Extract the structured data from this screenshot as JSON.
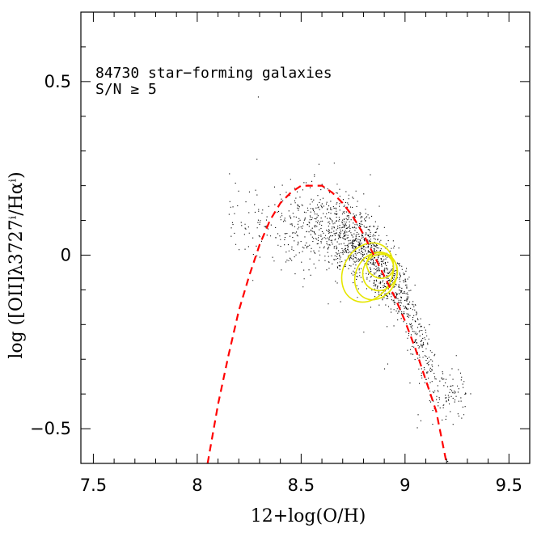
{
  "chart_data": {
    "type": "scatter",
    "title": "",
    "xlabel": "12+log(O/H)",
    "ylabel": "log ([OII]λ3727ⁱ/Hαⁱ)",
    "xlim": [
      7.44,
      9.6
    ],
    "ylim": [
      -0.6,
      0.7
    ],
    "x_ticks": [
      7.5,
      8,
      8.5,
      9,
      9.5
    ],
    "x_tick_labels": [
      "7.5",
      "8",
      "8.5",
      "9",
      "9.5"
    ],
    "y_ticks": [
      -0.5,
      0,
      0.5
    ],
    "y_tick_labels": [
      "−0.5",
      "0",
      "0.5"
    ],
    "annotations": [
      "84730 star−forming galaxies",
      "S/N ≥ 5"
    ],
    "grid": false,
    "series": [
      {
        "kind": "scatter-cloud",
        "color": "#000000",
        "approximate_density_ridge": [
          {
            "x": 8.3,
            "y": 0.08,
            "spread": 0.09
          },
          {
            "x": 8.5,
            "y": 0.1,
            "spread": 0.09
          },
          {
            "x": 8.7,
            "y": 0.06,
            "spread": 0.08
          },
          {
            "x": 8.85,
            "y": 0.0,
            "spread": 0.07
          },
          {
            "x": 9.0,
            "y": -0.12,
            "spread": 0.07
          },
          {
            "x": 9.1,
            "y": -0.3,
            "spread": 0.07
          },
          {
            "x": 9.15,
            "y": -0.4,
            "spread": 0.06
          }
        ]
      },
      {
        "kind": "contours",
        "color": "#e6e600",
        "levels": [
          {
            "center": {
              "x": 8.82,
              "y": -0.05
            },
            "rx": 0.3,
            "ry": 0.085,
            "angle_deg": -62
          },
          {
            "center": {
              "x": 8.86,
              "y": -0.06
            },
            "rx": 0.24,
            "ry": 0.065,
            "angle_deg": -62
          },
          {
            "center": {
              "x": 8.88,
              "y": -0.05
            },
            "rx": 0.18,
            "ry": 0.05,
            "angle_deg": -60
          },
          {
            "center": {
              "x": 8.88,
              "y": -0.03
            },
            "rx": 0.12,
            "ry": 0.035,
            "angle_deg": -58
          }
        ]
      },
      {
        "kind": "model-curve",
        "color": "#ff0000",
        "style": "dashed",
        "x": [
          8.05,
          8.1,
          8.15,
          8.2,
          8.25,
          8.3,
          8.35,
          8.4,
          8.45,
          8.5,
          8.55,
          8.6,
          8.65,
          8.7,
          8.75,
          8.8,
          8.85,
          8.9,
          8.95,
          9.0,
          9.05,
          9.1,
          9.15,
          9.2
        ],
        "y": [
          -0.6,
          -0.43,
          -0.29,
          -0.16,
          -0.06,
          0.03,
          0.1,
          0.15,
          0.18,
          0.2,
          0.2,
          0.2,
          0.18,
          0.15,
          0.11,
          0.06,
          0.0,
          -0.06,
          -0.12,
          -0.19,
          -0.27,
          -0.36,
          -0.45,
          -0.6
        ]
      }
    ]
  }
}
